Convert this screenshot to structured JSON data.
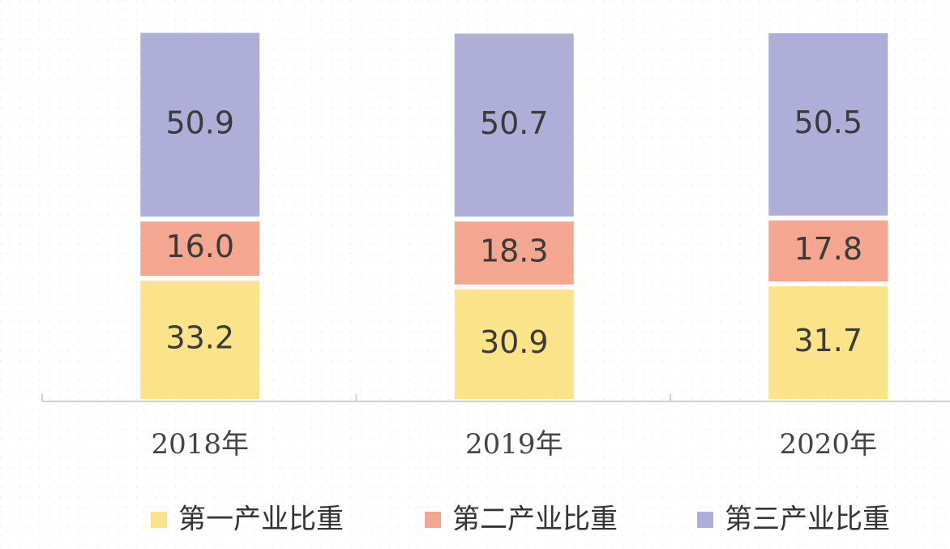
{
  "chart_data": {
    "type": "stacked-bar",
    "categories": [
      "2018年",
      "2019年",
      "2020年"
    ],
    "series": [
      {
        "name": "第一产业比重",
        "color": "#fbe38a",
        "values": [
          33.2,
          30.9,
          31.7
        ],
        "value_labels": [
          "33.2",
          "30.9",
          "31.7"
        ]
      },
      {
        "name": "第二产业比重",
        "color": "#f5a690",
        "values": [
          16.0,
          18.3,
          17.8
        ],
        "value_labels": [
          "16.0",
          "18.3",
          "17.8"
        ]
      },
      {
        "name": "第三产业比重",
        "color": "#aeaed9",
        "values": [
          50.9,
          50.7,
          50.5
        ],
        "value_labels": [
          "50.9",
          "50.7",
          "50.5"
        ]
      }
    ],
    "ylim": [
      0,
      100
    ]
  }
}
